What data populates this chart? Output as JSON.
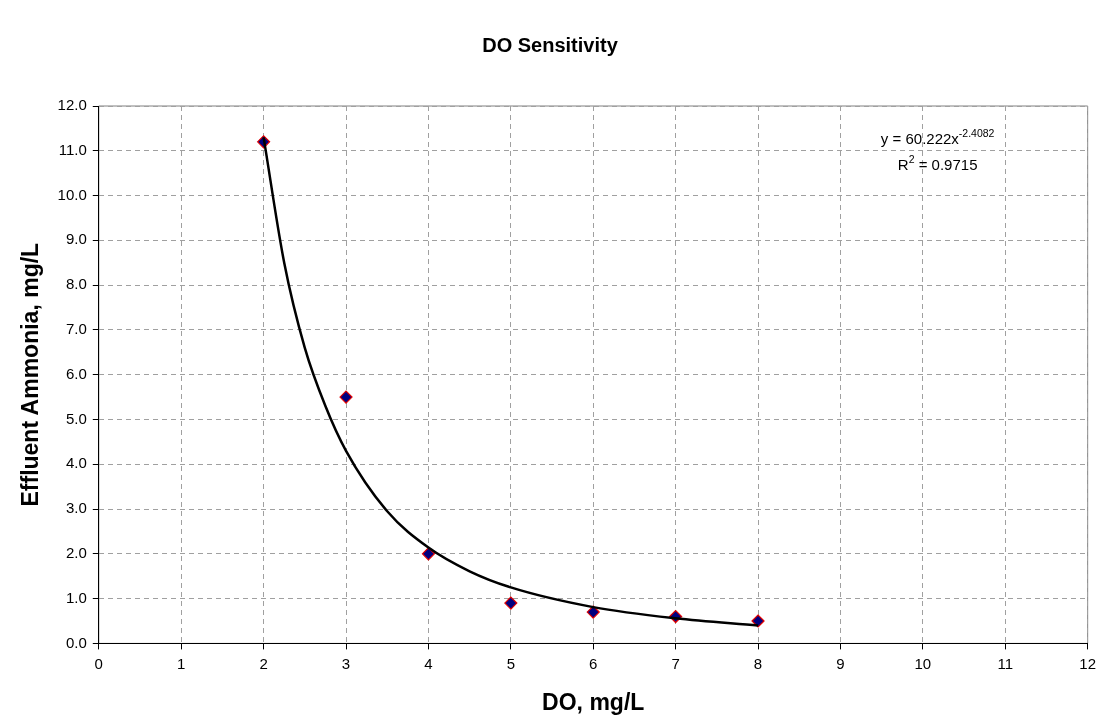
{
  "chart_data": {
    "type": "scatter",
    "title": "DO Sensitivity",
    "xlabel": "DO, mg/L",
    "ylabel": "Effluent Ammonia, mg/L",
    "series": [
      {
        "type": "scatter",
        "marker": "diamond",
        "color": "#000080",
        "x": [
          2,
          3,
          4,
          5,
          6,
          7,
          8
        ],
        "values": [
          11.2,
          5.5,
          2.0,
          0.9,
          0.7,
          0.6,
          0.5
        ]
      },
      {
        "type": "line",
        "marker": "none",
        "line_style": "solid",
        "color": "#000000",
        "x": [
          2,
          2.25,
          2.5,
          2.75,
          3,
          3.5,
          4,
          4.5,
          5,
          6,
          7,
          8
        ],
        "values": [
          11.3,
          8.5,
          6.6,
          5.3,
          4.3,
          2.95,
          2.14,
          1.61,
          1.25,
          0.81,
          0.56,
          0.4
        ]
      }
    ],
    "xlim": [
      0,
      12
    ],
    "xticks": [
      0,
      1,
      2,
      3,
      4,
      5,
      6,
      7,
      8,
      9,
      10,
      11,
      12
    ],
    "ylim": [
      0,
      12
    ],
    "yticks": [
      {
        "value": 0,
        "label": "0.0"
      },
      {
        "value": 1,
        "label": "1.0"
      },
      {
        "value": 2,
        "label": "2.0"
      },
      {
        "value": 3,
        "label": "3.0"
      },
      {
        "value": 4,
        "label": "4.0"
      },
      {
        "value": 5,
        "label": "5.0"
      },
      {
        "value": 6,
        "label": "6.0"
      },
      {
        "value": 7,
        "label": "7.0"
      },
      {
        "value": 8,
        "label": "8.0"
      },
      {
        "value": 9,
        "label": "9.0"
      },
      {
        "value": 10,
        "label": "10.0"
      },
      {
        "value": 11,
        "label": "11.0"
      },
      {
        "value": 12,
        "label": "12.0"
      }
    ],
    "grid": true,
    "annotations": [
      "y = 60.222x$^{-2.4082}$",
      "R$^{2}$ = 0.9715"
    ]
  }
}
